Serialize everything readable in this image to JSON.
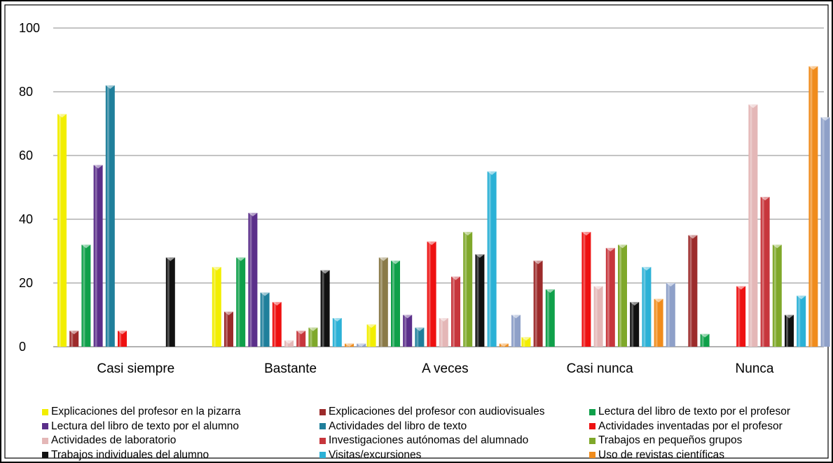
{
  "chart_data": {
    "type": "bar",
    "ylim": [
      0,
      100
    ],
    "yticks": [
      "0",
      "20",
      "40",
      "60",
      "80",
      "100"
    ],
    "grid": true,
    "legend_position": "bottom",
    "categories": [
      "Casi siempre",
      "Bastante",
      "A veces",
      "Casi nunca",
      "Nunca"
    ],
    "series": [
      {
        "name": "Explicaciones del profesor en la pizarra",
        "color": "#f2ee00",
        "values": [
          73,
          25,
          7,
          3,
          null
        ]
      },
      {
        "name": "Explicaciones del profesor con audiovisuales",
        "color": "#9c2b2b",
        "values": [
          5,
          11,
          null,
          27,
          35
        ]
      },
      {
        "name": "Lectura del libro de texto por el profesor",
        "color": "#0fa04a",
        "values": [
          32,
          28,
          27,
          18,
          4
        ]
      },
      {
        "name": "Lectura del libro de texto por el alumno",
        "color": "#5b2f8a",
        "values": [
          57,
          42,
          10,
          null,
          null
        ]
      },
      {
        "name": "Actividades del libro de texto",
        "color": "#1f7f9b",
        "values": [
          82,
          17,
          6,
          null,
          null
        ]
      },
      {
        "name": "Actividades inventadas por el profesor",
        "color": "#ee1111",
        "values": [
          5,
          14,
          33,
          36,
          19
        ]
      },
      {
        "name": "Actividades de laboratorio",
        "color": "#e4b7b7",
        "values": [
          null,
          2,
          9,
          19,
          76
        ]
      },
      {
        "name": "Investigaciones autónomas del alumnado",
        "color": "#c7363c",
        "values": [
          null,
          5,
          22,
          31,
          47
        ]
      },
      {
        "name": "Trabajos en pequeños grupos",
        "color": "#7fa82a",
        "values": [
          null,
          6,
          36,
          32,
          32
        ]
      },
      {
        "name": "Trabajos individuales del alumno",
        "color": "#111111",
        "values": [
          28,
          24,
          29,
          14,
          10
        ]
      },
      {
        "name": "Visitas/excursiones",
        "color": "#2bb1d6",
        "values": [
          null,
          9,
          55,
          25,
          16
        ]
      },
      {
        "name": "Uso de revistas científicas",
        "color": "#f08c1c",
        "values": [
          null,
          1,
          1,
          15,
          88
        ]
      },
      {
        "name": "",
        "color": "#8ea0c8",
        "values": [
          null,
          1,
          10,
          20,
          72
        ]
      }
    ],
    "extra_bar": {
      "category": "A veces",
      "color": "#8a7a48",
      "value": 28
    }
  }
}
